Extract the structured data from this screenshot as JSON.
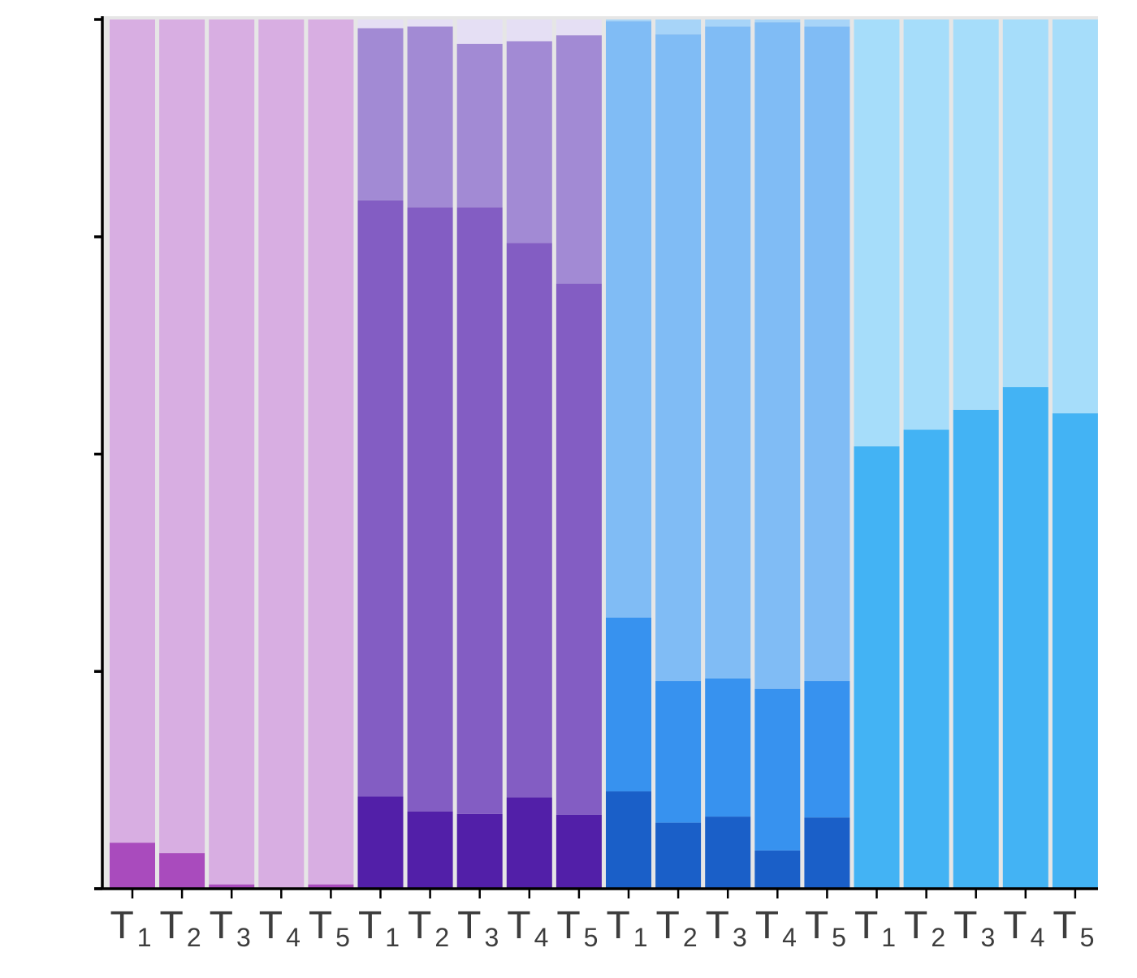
{
  "chart_data": {
    "type": "bar",
    "stacked": true,
    "grid": false,
    "legend": "none",
    "ylim": [
      0,
      1
    ],
    "y_ticks": [
      0,
      0.25,
      0.5,
      0.75,
      1
    ],
    "background_color": "#e6e6e6",
    "categories": [
      {
        "base": "T",
        "sub": "1"
      },
      {
        "base": "T",
        "sub": "2"
      },
      {
        "base": "T",
        "sub": "3"
      },
      {
        "base": "T",
        "sub": "4"
      },
      {
        "base": "T",
        "sub": "5"
      },
      {
        "base": "T",
        "sub": "1"
      },
      {
        "base": "T",
        "sub": "2"
      },
      {
        "base": "T",
        "sub": "3"
      },
      {
        "base": "T",
        "sub": "4"
      },
      {
        "base": "T",
        "sub": "5"
      },
      {
        "base": "T",
        "sub": "1"
      },
      {
        "base": "T",
        "sub": "2"
      },
      {
        "base": "T",
        "sub": "3"
      },
      {
        "base": "T",
        "sub": "4"
      },
      {
        "base": "T",
        "sub": "5"
      },
      {
        "base": "T",
        "sub": "1"
      },
      {
        "base": "T",
        "sub": "2"
      },
      {
        "base": "T",
        "sub": "3"
      },
      {
        "base": "T",
        "sub": "4"
      },
      {
        "base": "T",
        "sub": "5"
      }
    ],
    "bars": [
      {
        "segments": [
          {
            "value": 0.053,
            "color": "#a94bbd"
          },
          {
            "value": 0.947,
            "color": "#d8aee2"
          }
        ]
      },
      {
        "segments": [
          {
            "value": 0.041,
            "color": "#a94bbd"
          },
          {
            "value": 0.959,
            "color": "#d8aee2"
          }
        ]
      },
      {
        "segments": [
          {
            "value": 0.005,
            "color": "#a94bbd"
          },
          {
            "value": 0.995,
            "color": "#d8aee2"
          }
        ]
      },
      {
        "segments": [
          {
            "value": 0.001,
            "color": "#a94bbd"
          },
          {
            "value": 0.999,
            "color": "#d8aee2"
          }
        ]
      },
      {
        "segments": [
          {
            "value": 0.005,
            "color": "#a94bbd"
          },
          {
            "value": 0.995,
            "color": "#d8aee2"
          }
        ]
      },
      {
        "segments": [
          {
            "value": 0.106,
            "color": "#521fa8"
          },
          {
            "value": 0.686,
            "color": "#835dc3"
          },
          {
            "value": 0.198,
            "color": "#a28ad4"
          },
          {
            "value": 0.01,
            "color": "#e5dff4"
          }
        ]
      },
      {
        "segments": [
          {
            "value": 0.089,
            "color": "#521fa8"
          },
          {
            "value": 0.695,
            "color": "#835dc3"
          },
          {
            "value": 0.208,
            "color": "#a28ad4"
          },
          {
            "value": 0.008,
            "color": "#e5dff4"
          }
        ]
      },
      {
        "segments": [
          {
            "value": 0.086,
            "color": "#521fa8"
          },
          {
            "value": 0.698,
            "color": "#835dc3"
          },
          {
            "value": 0.188,
            "color": "#a28ad4"
          },
          {
            "value": 0.028,
            "color": "#e5dff4"
          }
        ]
      },
      {
        "segments": [
          {
            "value": 0.105,
            "color": "#521fa8"
          },
          {
            "value": 0.638,
            "color": "#835dc3"
          },
          {
            "value": 0.232,
            "color": "#a28ad4"
          },
          {
            "value": 0.025,
            "color": "#e5dff4"
          }
        ]
      },
      {
        "segments": [
          {
            "value": 0.085,
            "color": "#521fa8"
          },
          {
            "value": 0.611,
            "color": "#835dc3"
          },
          {
            "value": 0.286,
            "color": "#a28ad4"
          },
          {
            "value": 0.018,
            "color": "#e5dff4"
          }
        ]
      },
      {
        "segments": [
          {
            "value": 0.112,
            "color": "#1a5fc8"
          },
          {
            "value": 0.2,
            "color": "#3792ef"
          },
          {
            "value": 0.686,
            "color": "#80bcf5"
          },
          {
            "value": 0.002,
            "color": "#a7d4f8"
          }
        ]
      },
      {
        "segments": [
          {
            "value": 0.076,
            "color": "#1a5fc8"
          },
          {
            "value": 0.163,
            "color": "#3792ef"
          },
          {
            "value": 0.744,
            "color": "#80bcf5"
          },
          {
            "value": 0.017,
            "color": "#a7d4f8"
          }
        ]
      },
      {
        "segments": [
          {
            "value": 0.083,
            "color": "#1a5fc8"
          },
          {
            "value": 0.159,
            "color": "#3792ef"
          },
          {
            "value": 0.75,
            "color": "#80bcf5"
          },
          {
            "value": 0.008,
            "color": "#a7d4f8"
          }
        ]
      },
      {
        "segments": [
          {
            "value": 0.044,
            "color": "#1a5fc8"
          },
          {
            "value": 0.186,
            "color": "#3792ef"
          },
          {
            "value": 0.767,
            "color": "#80bcf5"
          },
          {
            "value": 0.003,
            "color": "#a7d4f8"
          }
        ]
      },
      {
        "segments": [
          {
            "value": 0.082,
            "color": "#1a5fc8"
          },
          {
            "value": 0.157,
            "color": "#3792ef"
          },
          {
            "value": 0.753,
            "color": "#80bcf5"
          },
          {
            "value": 0.008,
            "color": "#a7d4f8"
          }
        ]
      },
      {
        "segments": [
          {
            "value": 0.509,
            "color": "#43b3f4"
          },
          {
            "value": 0.491,
            "color": "#a6ddfa"
          }
        ]
      },
      {
        "segments": [
          {
            "value": 0.528,
            "color": "#43b3f4"
          },
          {
            "value": 0.472,
            "color": "#a6ddfa"
          }
        ]
      },
      {
        "segments": [
          {
            "value": 0.551,
            "color": "#43b3f4"
          },
          {
            "value": 0.449,
            "color": "#a6ddfa"
          }
        ]
      },
      {
        "segments": [
          {
            "value": 0.577,
            "color": "#43b3f4"
          },
          {
            "value": 0.423,
            "color": "#a6ddfa"
          }
        ]
      },
      {
        "segments": [
          {
            "value": 0.547,
            "color": "#43b3f4"
          },
          {
            "value": 0.453,
            "color": "#a6ddfa"
          }
        ]
      }
    ]
  }
}
